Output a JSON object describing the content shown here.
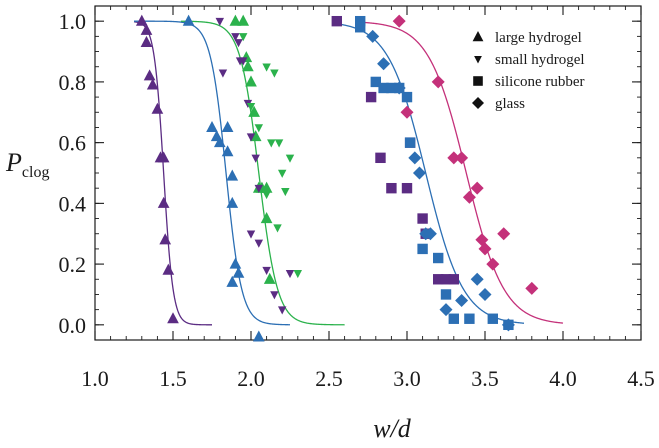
{
  "chart_data": {
    "type": "scatter",
    "title": "",
    "xlabel": "w/d",
    "ylabel_main": "P",
    "ylabel_sub": "clog",
    "xlim": [
      1.0,
      4.5
    ],
    "ylim": [
      -0.05,
      1.05
    ],
    "xticks": [
      1.0,
      1.5,
      2.0,
      2.5,
      3.0,
      3.5,
      4.0,
      4.5
    ],
    "xtick_labels": [
      "1.0",
      "1.5",
      "2.0",
      "2.5",
      "3.0",
      "3.5",
      "4.0",
      "4.5"
    ],
    "yticks": [
      0.0,
      0.2,
      0.4,
      0.6,
      0.8,
      1.0
    ],
    "ytick_labels": [
      "0.0",
      "0.2",
      "0.4",
      "0.6",
      "0.8",
      "1.0"
    ],
    "grid": false,
    "legend_position": "top-right",
    "series": [
      {
        "name": "large hydrogel",
        "marker": "triangle-up",
        "color": "#5b2c83",
        "points": [
          [
            1.3,
            1.0
          ],
          [
            1.33,
            0.97
          ],
          [
            1.33,
            0.93
          ],
          [
            1.35,
            0.82
          ],
          [
            1.37,
            0.79
          ],
          [
            1.4,
            0.71
          ],
          [
            1.42,
            0.55
          ],
          [
            1.44,
            0.55
          ],
          [
            1.44,
            0.4
          ],
          [
            1.45,
            0.28
          ],
          [
            1.47,
            0.18
          ],
          [
            1.5,
            0.02
          ]
        ],
        "fit": {
          "x0": 1.44,
          "k": 0.03,
          "x_start": 1.25,
          "x_end": 1.75
        }
      },
      {
        "name": "large hydrogel",
        "marker": "triangle-up",
        "color": "#2c6fb4",
        "points": [
          [
            1.6,
            1.0
          ],
          [
            1.75,
            0.65
          ],
          [
            1.78,
            0.62
          ],
          [
            1.8,
            0.6
          ],
          [
            1.85,
            0.65
          ],
          [
            1.85,
            0.57
          ],
          [
            1.88,
            0.49
          ],
          [
            1.88,
            0.4
          ],
          [
            1.9,
            0.2
          ],
          [
            1.92,
            0.17
          ],
          [
            1.88,
            0.14
          ],
          [
            2.05,
            -0.04
          ]
        ],
        "fit": {
          "x0": 1.84,
          "k": 0.05,
          "x_start": 1.25,
          "x_end": 2.25
        }
      },
      {
        "name": "large hydrogel",
        "marker": "triangle-up",
        "color": "#2bb24c",
        "points": [
          [
            1.9,
            1.0
          ],
          [
            1.95,
            1.0
          ],
          [
            1.97,
            0.88
          ],
          [
            1.98,
            0.85
          ],
          [
            2.0,
            0.8
          ],
          [
            2.02,
            0.7
          ],
          [
            2.03,
            0.62
          ],
          [
            2.05,
            0.45
          ],
          [
            2.07,
            0.45
          ],
          [
            2.1,
            0.45
          ],
          [
            2.1,
            0.35
          ],
          [
            2.12,
            0.15
          ]
        ],
        "fit": {
          "x0": 2.05,
          "k": 0.06,
          "x_start": 1.55,
          "x_end": 2.6
        }
      },
      {
        "name": "small hydrogel",
        "marker": "triangle-down",
        "color": "#5b2c83",
        "points": [
          [
            1.8,
            1.0
          ],
          [
            1.82,
            0.83
          ],
          [
            1.9,
            0.95
          ],
          [
            1.92,
            0.93
          ],
          [
            1.93,
            0.87
          ],
          [
            1.95,
            0.87
          ],
          [
            1.98,
            0.73
          ],
          [
            2.0,
            0.62
          ],
          [
            2.03,
            0.55
          ],
          [
            2.05,
            0.45
          ],
          [
            2.0,
            0.3
          ],
          [
            2.05,
            0.27
          ],
          [
            2.1,
            0.18
          ],
          [
            2.15,
            0.1
          ],
          [
            2.2,
            0.05
          ],
          [
            2.25,
            0.17
          ]
        ]
      },
      {
        "name": "small hydrogel",
        "marker": "triangle-down",
        "color": "#2bb24c",
        "points": [
          [
            1.95,
            0.95
          ],
          [
            2.0,
            0.72
          ],
          [
            2.05,
            0.65
          ],
          [
            2.1,
            0.43
          ],
          [
            2.1,
            0.85
          ],
          [
            2.13,
            0.6
          ],
          [
            2.15,
            0.83
          ],
          [
            2.17,
            0.32
          ],
          [
            2.18,
            0.6
          ],
          [
            2.2,
            0.5
          ],
          [
            2.22,
            0.44
          ],
          [
            2.25,
            0.55
          ],
          [
            2.3,
            0.17
          ]
        ]
      },
      {
        "name": "silicone rubber",
        "marker": "square",
        "color": "#5b2c83",
        "points": [
          [
            2.55,
            1.0
          ],
          [
            2.77,
            0.75
          ],
          [
            2.83,
            0.55
          ],
          [
            2.9,
            0.45
          ],
          [
            3.0,
            0.45
          ],
          [
            3.02,
            0.6
          ],
          [
            3.1,
            0.35
          ],
          [
            3.12,
            0.3
          ],
          [
            3.2,
            0.15
          ],
          [
            3.25,
            0.15
          ],
          [
            3.3,
            0.15
          ]
        ]
      },
      {
        "name": "silicone rubber",
        "marker": "square",
        "color": "#2c6fb4",
        "points": [
          [
            2.7,
            1.0
          ],
          [
            2.7,
            0.98
          ],
          [
            2.8,
            0.8
          ],
          [
            2.85,
            0.78
          ],
          [
            2.9,
            0.78
          ],
          [
            2.95,
            0.78
          ],
          [
            3.0,
            0.75
          ],
          [
            3.02,
            0.6
          ],
          [
            3.1,
            0.25
          ],
          [
            3.2,
            0.22
          ],
          [
            3.25,
            0.1
          ],
          [
            3.3,
            0.02
          ],
          [
            3.4,
            0.02
          ],
          [
            3.55,
            0.02
          ],
          [
            3.65,
            0.0
          ]
        ]
      },
      {
        "name": "glass",
        "marker": "diamond",
        "color": "#2c6fb4",
        "points": [
          [
            2.78,
            0.95
          ],
          [
            2.85,
            0.86
          ],
          [
            2.95,
            0.78
          ],
          [
            3.05,
            0.55
          ],
          [
            3.08,
            0.5
          ],
          [
            3.12,
            0.3
          ],
          [
            3.15,
            0.3
          ],
          [
            3.25,
            0.05
          ],
          [
            3.35,
            0.08
          ],
          [
            3.45,
            0.15
          ],
          [
            3.5,
            0.1
          ],
          [
            3.65,
            0.0
          ]
        ],
        "fit": {
          "x0": 3.12,
          "k": 0.12,
          "x_start": 2.55,
          "x_end": 3.75
        }
      },
      {
        "name": "glass",
        "marker": "diamond",
        "color": "#c4317a",
        "points": [
          [
            2.95,
            1.0
          ],
          [
            3.0,
            0.7
          ],
          [
            3.2,
            0.8
          ],
          [
            3.3,
            0.55
          ],
          [
            3.35,
            0.55
          ],
          [
            3.4,
            0.42
          ],
          [
            3.45,
            0.45
          ],
          [
            3.48,
            0.28
          ],
          [
            3.5,
            0.25
          ],
          [
            3.55,
            0.2
          ],
          [
            3.62,
            0.3
          ],
          [
            3.8,
            0.12
          ]
        ],
        "fit": {
          "x0": 3.38,
          "k": 0.12,
          "x_start": 2.7,
          "x_end": 4.0
        }
      }
    ],
    "legend": [
      {
        "label": "large hydrogel",
        "marker": "triangle-up"
      },
      {
        "label": "small hydrogel",
        "marker": "triangle-down"
      },
      {
        "label": "silicone rubber",
        "marker": "square"
      },
      {
        "label": "glass",
        "marker": "diamond"
      }
    ]
  }
}
